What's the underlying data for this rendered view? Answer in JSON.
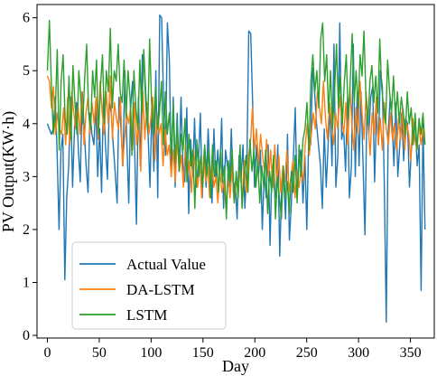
{
  "chart_data": {
    "type": "line",
    "title": "",
    "xlabel": "Day",
    "ylabel": "PV Output(KW·h)",
    "xlim": [
      -10,
      373
    ],
    "ylim": [
      -0.05,
      6.25
    ],
    "xticks": [
      0,
      50,
      100,
      150,
      200,
      250,
      300,
      350
    ],
    "yticks": [
      0,
      1,
      2,
      3,
      4,
      5,
      6
    ],
    "grid": false,
    "legend_position": "lower-left",
    "series": [
      {
        "name": "Actual Value",
        "color": "#1f77b4",
        "values": [
          4.0,
          3.9,
          3.8,
          3.9,
          4.5,
          3.5,
          2.0,
          3.5,
          3.8,
          1.05,
          2.6,
          3.2,
          4.5,
          2.8,
          3.9,
          4.4,
          3.5,
          2.9,
          4.6,
          3.9,
          3.2,
          2.7,
          4.2,
          3.8,
          3.6,
          4.4,
          3.0,
          3.9,
          2.7,
          4.6,
          3.6,
          2.95,
          4.4,
          4.2,
          3.6,
          3.1,
          2.5,
          4.5,
          3.9,
          3.2,
          5.0,
          3.7,
          2.5,
          4.3,
          4.8,
          3.6,
          2.1,
          4.5,
          3.2,
          5.3,
          5.1,
          4.2,
          3.8,
          2.8,
          4.4,
          3.1,
          5.0,
          2.6,
          6.05,
          6.0,
          4.4,
          3.4,
          5.9,
          5.2,
          3.0,
          4.5,
          2.8,
          4.2,
          3.1,
          4.5,
          3.2,
          2.9,
          4.3,
          2.3,
          3.7,
          3.0,
          4.1,
          2.8,
          3.3,
          4.2,
          2.6,
          3.5,
          2.8,
          3.9,
          3.1,
          2.5,
          3.9,
          2.9,
          3.5,
          3.0,
          4.1,
          2.4,
          3.5,
          3.2,
          2.8,
          3.9,
          2.7,
          2.9,
          2.2,
          3.4,
          2.9,
          3.6,
          2.4,
          3.2,
          5.75,
          5.7,
          4.4,
          2.8,
          3.6,
          3.0,
          3.5,
          2.0,
          3.1,
          2.6,
          3.6,
          1.7,
          3.2,
          2.8,
          2.6,
          3.6,
          1.5,
          2.8,
          3.0,
          2.2,
          3.8,
          1.8,
          2.5,
          3.3,
          4.3,
          2.6,
          3.3,
          3.5,
          2.5,
          3.4,
          2.0,
          3.8,
          3.6,
          5.05,
          4.6,
          4.0,
          3.6,
          3.2,
          2.4,
          3.9,
          2.8,
          3.6,
          4.3,
          3.2,
          5.5,
          2.8,
          3.4,
          5.9,
          3.7,
          3.9,
          3.1,
          4.5,
          2.6,
          3.2,
          5.5,
          3.0,
          4.6,
          3.2,
          4.6,
          3.3,
          1.9,
          4.2,
          3.8,
          4.5,
          4.7,
          2.9,
          4.2,
          3.6,
          5.0,
          4.7,
          2.9,
          0.25,
          3.8,
          4.5,
          4.1,
          3.2,
          4.4,
          3.0,
          3.6,
          4.2,
          3.3,
          4.1,
          4.0,
          2.8,
          3.5,
          3.9,
          4.0,
          3.2,
          3.6,
          0.85,
          4.0,
          2.0
        ]
      },
      {
        "name": "DA-LSTM",
        "color": "#ff7f0e",
        "values": [
          4.9,
          4.8,
          4.3,
          4.7,
          3.8,
          4.2,
          3.9,
          3.8,
          4.3,
          3.6,
          4.5,
          3.6,
          4.6,
          4.2,
          3.9,
          4.4,
          3.8,
          4.6,
          3.6,
          4.2,
          4.5,
          3.8,
          4.4,
          4.0,
          4.5,
          3.7,
          4.8,
          4.2,
          3.8,
          4.6,
          4.0,
          4.9,
          3.7,
          4.4,
          4.1,
          3.9,
          4.5,
          3.2,
          3.7,
          4.2,
          4.0,
          4.3,
          3.5,
          4.4,
          3.6,
          4.0,
          3.1,
          4.6,
          3.7,
          4.4,
          3.8,
          4.1,
          4.5,
          3.3,
          4.2,
          3.8,
          4.0,
          3.2,
          3.9,
          3.4,
          3.6,
          3.0,
          3.5,
          2.9,
          3.7,
          3.1,
          3.4,
          2.8,
          3.6,
          3.0,
          3.3,
          2.7,
          3.5,
          3.1,
          2.8,
          3.3,
          2.6,
          3.4,
          2.9,
          3.2,
          2.6,
          3.3,
          2.8,
          3.0,
          2.5,
          3.1,
          2.7,
          2.9,
          2.4,
          3.0,
          2.6,
          3.2,
          2.5,
          2.9,
          2.8,
          3.1,
          2.6,
          3.3,
          2.7,
          3.4,
          3.6,
          4.3,
          3.5,
          3.9,
          3.2,
          3.8,
          3.4,
          3.1,
          3.7,
          3.0,
          3.5,
          2.8,
          3.6,
          2.9,
          3.4,
          2.7,
          3.2,
          2.9,
          3.5,
          2.7,
          3.0,
          3.3,
          2.6,
          3.1,
          2.8,
          3.2,
          2.9,
          3.6,
          4.0,
          3.4,
          3.8,
          4.2,
          3.9,
          4.6,
          4.3,
          4.0,
          4.8,
          4.1,
          3.7,
          4.4,
          4.0,
          3.6,
          4.2,
          3.9,
          4.5,
          4.1,
          3.8,
          4.4,
          3.6,
          4.7,
          4.0,
          3.5,
          4.3,
          3.8,
          4.8,
          4.2,
          3.7,
          4.6,
          4.0,
          3.4,
          4.2,
          3.8,
          4.5,
          3.6,
          4.1,
          3.5,
          4.4,
          3.9,
          3.6,
          4.2,
          3.7,
          4.0,
          3.5,
          4.1,
          3.7,
          4.3,
          3.5,
          4.0,
          3.8,
          3.3,
          4.1,
          3.7,
          3.5,
          4.0,
          3.6,
          3.9,
          3.6
        ]
      },
      {
        "name": "LSTM",
        "color": "#2ca02c",
        "values": [
          5.0,
          5.95,
          4.8,
          3.8,
          4.2,
          5.4,
          3.5,
          4.8,
          5.3,
          4.1,
          3.8,
          4.9,
          3.7,
          5.1,
          4.4,
          3.8,
          5.0,
          4.5,
          4.0,
          4.9,
          5.5,
          4.2,
          3.9,
          5.0,
          4.5,
          5.2,
          3.8,
          4.7,
          5.3,
          4.0,
          5.0,
          4.6,
          5.8,
          4.3,
          5.0,
          4.8,
          5.5,
          4.6,
          4.4,
          5.2,
          4.1,
          5.0,
          4.5,
          3.4,
          5.0,
          4.3,
          3.9,
          5.2,
          4.2,
          5.4,
          4.6,
          3.9,
          5.6,
          4.4,
          3.8,
          4.7,
          3.9,
          4.2,
          4.8,
          3.6,
          4.6,
          3.8,
          4.2,
          3.4,
          4.4,
          3.3,
          4.0,
          3.1,
          3.8,
          3.5,
          4.1,
          2.9,
          3.8,
          3.2,
          3.5,
          2.4,
          3.7,
          3.0,
          3.4,
          2.8,
          3.6,
          3.0,
          3.5,
          2.6,
          3.6,
          3.0,
          3.3,
          2.7,
          3.5,
          2.9,
          3.2,
          2.2,
          3.3,
          2.9,
          3.5,
          2.5,
          3.1,
          2.6,
          3.6,
          2.4,
          3.0,
          3.4,
          2.7,
          3.7,
          3.1,
          3.5,
          2.8,
          3.3,
          2.5,
          3.2,
          2.8,
          3.5,
          2.3,
          3.1,
          2.7,
          3.4,
          2.2,
          3.0,
          2.6,
          2.2,
          3.2,
          2.6,
          2.9,
          2.3,
          3.1,
          2.7,
          3.4,
          2.5,
          3.6,
          3.0,
          3.7,
          3.9,
          4.4,
          3.5,
          4.8,
          5.3,
          4.6,
          5.0,
          4.3,
          5.6,
          5.9,
          4.8,
          5.3,
          4.2,
          5.0,
          3.9,
          4.6,
          5.5,
          4.3,
          4.9,
          4.0,
          4.8,
          5.3,
          4.1,
          4.8,
          5.7,
          4.4,
          5.0,
          4.3,
          5.3,
          4.9,
          5.75,
          4.5,
          4.0,
          4.8,
          5.1,
          4.4,
          4.9,
          4.2,
          5.6,
          4.7,
          4.3,
          4.0,
          5.2,
          4.6,
          4.2,
          4.9,
          4.1,
          4.6,
          4.0,
          4.5,
          4.2,
          3.8,
          4.6,
          4.0,
          4.3,
          3.6,
          4.2,
          3.5,
          4.1,
          3.8,
          4.2,
          3.6
        ]
      }
    ]
  }
}
